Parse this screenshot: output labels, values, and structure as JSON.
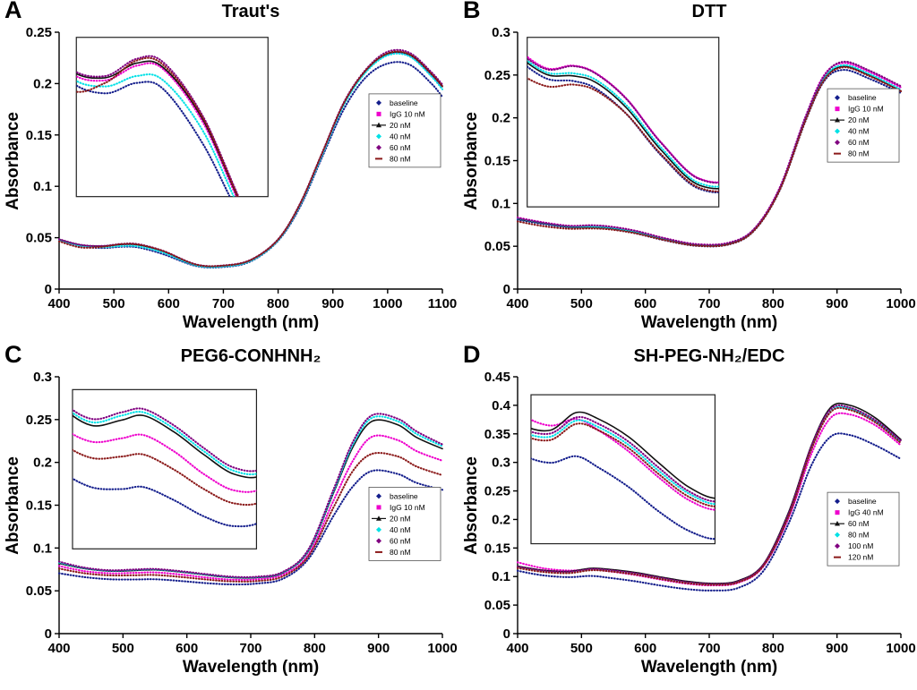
{
  "figure": {
    "background": "#ffffff"
  },
  "chart_data": [
    {
      "type": "line",
      "panel": "A",
      "title": "Traut's",
      "xlabel": "Wavelength (nm)",
      "ylabel": "Absorbance",
      "xlim": [
        400,
        1100
      ],
      "ylim": [
        0,
        0.25
      ],
      "xticks": [
        400,
        500,
        600,
        700,
        800,
        900,
        1000,
        1100
      ],
      "xtick_labels": [
        "400",
        "500",
        "600",
        "700",
        "800",
        "900",
        "1000",
        "1100"
      ],
      "yticks": [
        0,
        0.05,
        0.1,
        0.15,
        0.2,
        0.25
      ],
      "ytick_labels": [
        "0",
        "0.05",
        "0.1",
        "0.15",
        "0.2",
        "0.25"
      ],
      "legend_position": "right-inside",
      "legend_top_frac": 0.24,
      "inset": {
        "pos": [
          0.045,
          0.02,
          0.5,
          0.62
        ],
        "xlim": [
          448,
          662
        ],
        "ylim": [
          0.028,
          0.0465
        ]
      },
      "x": [
        400,
        440,
        480,
        515,
        545,
        590,
        650,
        700,
        750,
        800,
        840,
        880,
        920,
        960,
        1000,
        1040,
        1080,
        1100
      ],
      "series": [
        {
          "name": "baseline",
          "color": "#141e8c",
          "marker": "diamond",
          "line": "dotted",
          "y": [
            0.047,
            0.0415,
            0.04,
            0.0412,
            0.0405,
            0.034,
            0.0225,
            0.0215,
            0.027,
            0.047,
            0.08,
            0.128,
            0.175,
            0.206,
            0.2195,
            0.2185,
            0.2,
            0.187
          ]
        },
        {
          "name": "IgG 10 nM",
          "color": "#ee00cc",
          "marker": "square",
          "line": "dotted",
          "y": [
            0.048,
            0.0425,
            0.0415,
            0.0432,
            0.0428,
            0.0365,
            0.0235,
            0.0225,
            0.028,
            0.048,
            0.082,
            0.131,
            0.18,
            0.212,
            0.228,
            0.227,
            0.208,
            0.196
          ]
        },
        {
          "name": "20 nM",
          "color": "#111111",
          "marker": "triangle-line",
          "line": "solid",
          "y": [
            0.0482,
            0.0428,
            0.0418,
            0.0435,
            0.043,
            0.0368,
            0.0237,
            0.0227,
            0.0282,
            0.0482,
            0.0825,
            0.1315,
            0.1805,
            0.2125,
            0.229,
            0.228,
            0.209,
            0.197
          ]
        },
        {
          "name": "40 nM",
          "color": "#00e1e6",
          "marker": "diamond",
          "line": "dotted",
          "y": [
            0.0478,
            0.042,
            0.0408,
            0.042,
            0.0415,
            0.0355,
            0.023,
            0.022,
            0.0275,
            0.0475,
            0.0815,
            0.13,
            0.179,
            0.211,
            0.2275,
            0.2265,
            0.207,
            0.1945
          ]
        },
        {
          "name": "60 nM",
          "color": "#800080",
          "marker": "diamond",
          "line": "dotted",
          "y": [
            0.0485,
            0.043,
            0.042,
            0.044,
            0.0436,
            0.0372,
            0.024,
            0.023,
            0.0285,
            0.0485,
            0.083,
            0.132,
            0.1815,
            0.2135,
            0.231,
            0.23,
            0.211,
            0.199
          ]
        },
        {
          "name": "80 nM",
          "color": "#8b1a1a",
          "marker": "dash",
          "line": "dotted",
          "y": [
            0.0465,
            0.0405,
            0.0412,
            0.0438,
            0.0433,
            0.037,
            0.0238,
            0.0228,
            0.0283,
            0.0483,
            0.0827,
            0.1317,
            0.1808,
            0.2128,
            0.2295,
            0.2285,
            0.2095,
            0.1975
          ]
        }
      ]
    },
    {
      "type": "line",
      "panel": "B",
      "title": "DTT",
      "xlabel": "Wavelength (nm)",
      "ylabel": "Absorbance",
      "xlim": [
        400,
        1000
      ],
      "ylim": [
        0,
        0.3
      ],
      "xticks": [
        400,
        500,
        600,
        700,
        800,
        900,
        1000
      ],
      "xtick_labels": [
        "400",
        "500",
        "600",
        "700",
        "800",
        "900",
        "1000"
      ],
      "yticks": [
        0,
        0.05,
        0.1,
        0.15,
        0.2,
        0.25,
        0.3
      ],
      "ytick_labels": [
        "0",
        "0.05",
        "0.1",
        "0.15",
        "0.2",
        "0.25",
        "0.3"
      ],
      "legend_position": "right-inside",
      "legend_top_frac": 0.22,
      "inset": {
        "pos": [
          0.025,
          0.02,
          0.5,
          0.66
        ],
        "xlim": [
          455,
          705
        ],
        "ylim": [
          0.047,
          0.08
        ]
      },
      "x": [
        400,
        440,
        480,
        515,
        545,
        585,
        630,
        680,
        730,
        770,
        810,
        850,
        880,
        910,
        950,
        1000
      ],
      "series": [
        {
          "name": "baseline",
          "color": "#141e8c",
          "marker": "diamond",
          "line": "dotted",
          "y": [
            0.081,
            0.076,
            0.072,
            0.0715,
            0.07,
            0.065,
            0.057,
            0.0505,
            0.052,
            0.068,
            0.115,
            0.195,
            0.243,
            0.256,
            0.246,
            0.229
          ]
        },
        {
          "name": "IgG 10 nM",
          "color": "#ee00cc",
          "marker": "square",
          "line": "dotted",
          "y": [
            0.0835,
            0.078,
            0.074,
            0.0745,
            0.073,
            0.068,
            0.0595,
            0.0525,
            0.054,
            0.07,
            0.118,
            0.2,
            0.25,
            0.264,
            0.254,
            0.2355
          ]
        },
        {
          "name": "20 nM",
          "color": "#111111",
          "marker": "triangle-line",
          "line": "solid",
          "y": [
            0.082,
            0.0768,
            0.0728,
            0.0725,
            0.0712,
            0.0662,
            0.058,
            0.0512,
            0.0528,
            0.0688,
            0.116,
            0.197,
            0.246,
            0.26,
            0.25,
            0.2315
          ]
        },
        {
          "name": "40 nM",
          "color": "#00e1e6",
          "marker": "diamond",
          "line": "dotted",
          "y": [
            0.0825,
            0.0772,
            0.0732,
            0.073,
            0.0717,
            0.0667,
            0.0585,
            0.0516,
            0.0532,
            0.0692,
            0.1165,
            0.198,
            0.247,
            0.2615,
            0.2515,
            0.233
          ]
        },
        {
          "name": "60 nM",
          "color": "#800080",
          "marker": "diamond",
          "line": "dotted",
          "y": [
            0.083,
            0.0776,
            0.0738,
            0.0744,
            0.0729,
            0.0679,
            0.0594,
            0.0524,
            0.0539,
            0.0699,
            0.1175,
            0.1995,
            0.249,
            0.2655,
            0.2555,
            0.237
          ]
        },
        {
          "name": "80 nM",
          "color": "#8b1a1a",
          "marker": "dash",
          "line": "dotted",
          "y": [
            0.079,
            0.0735,
            0.0705,
            0.0708,
            0.0696,
            0.065,
            0.0572,
            0.0507,
            0.0522,
            0.0682,
            0.1152,
            0.1955,
            0.244,
            0.259,
            0.249,
            0.231
          ]
        }
      ]
    },
    {
      "type": "line",
      "panel": "C",
      "title": "PEG6-CONHNH₂",
      "xlabel": "Wavelength (nm)",
      "ylabel": "Absorbance",
      "xlim": [
        400,
        1000
      ],
      "ylim": [
        0,
        0.3
      ],
      "xticks": [
        400,
        500,
        600,
        700,
        800,
        900,
        1000
      ],
      "xtick_labels": [
        "400",
        "500",
        "600",
        "700",
        "800",
        "900",
        "1000"
      ],
      "yticks": [
        0,
        0.05,
        0.1,
        0.15,
        0.2,
        0.25,
        0.3
      ],
      "ytick_labels": [
        "0",
        "0.05",
        "0.1",
        "0.15",
        "0.2",
        "0.25",
        "0.3"
      ],
      "legend_position": "right-inside",
      "legend_top_frac": 0.43,
      "inset": {
        "pos": [
          0.035,
          0.05,
          0.48,
          0.62
        ],
        "xlim": [
          455,
          700
        ],
        "ylim": [
          0.054,
          0.0785
        ]
      },
      "x": [
        400,
        440,
        480,
        520,
        550,
        590,
        630,
        670,
        710,
        750,
        790,
        830,
        860,
        890,
        930,
        960,
        1000
      ],
      "series": [
        {
          "name": "baseline",
          "color": "#141e8c",
          "marker": "diamond",
          "line": "dotted",
          "y": [
            0.0705,
            0.066,
            0.0635,
            0.0632,
            0.0635,
            0.0615,
            0.059,
            0.0575,
            0.0585,
            0.064,
            0.087,
            0.138,
            0.172,
            0.19,
            0.1865,
            0.176,
            0.168
          ]
        },
        {
          "name": "IgG 10 nM",
          "color": "#ee00cc",
          "marker": "square",
          "line": "dotted",
          "y": [
            0.079,
            0.073,
            0.0705,
            0.071,
            0.0715,
            0.069,
            0.0655,
            0.063,
            0.0635,
            0.069,
            0.092,
            0.156,
            0.202,
            0.23,
            0.226,
            0.213,
            0.202
          ]
        },
        {
          "name": "20 nM",
          "color": "#111111",
          "marker": "triangle-line",
          "line": "solid",
          "y": [
            0.082,
            0.076,
            0.073,
            0.0738,
            0.0745,
            0.072,
            0.0685,
            0.0655,
            0.0655,
            0.071,
            0.096,
            0.165,
            0.218,
            0.248,
            0.244,
            0.229,
            0.216
          ]
        },
        {
          "name": "40 nM",
          "color": "#00e1e6",
          "marker": "diamond",
          "line": "dotted",
          "y": [
            0.083,
            0.0765,
            0.0735,
            0.0745,
            0.075,
            0.0725,
            0.069,
            0.066,
            0.066,
            0.0715,
            0.097,
            0.167,
            0.221,
            0.252,
            0.248,
            0.233,
            0.219
          ]
        },
        {
          "name": "60 nM",
          "color": "#800080",
          "marker": "diamond",
          "line": "dotted",
          "y": [
            0.084,
            0.077,
            0.074,
            0.075,
            0.0755,
            0.073,
            0.0695,
            0.0665,
            0.0665,
            0.072,
            0.098,
            0.169,
            0.224,
            0.255,
            0.251,
            0.236,
            0.221
          ]
        },
        {
          "name": "80 nM",
          "color": "#8b1a1a",
          "marker": "dash",
          "line": "dotted",
          "y": [
            0.076,
            0.0705,
            0.068,
            0.0682,
            0.0685,
            0.0662,
            0.0632,
            0.061,
            0.0615,
            0.0668,
            0.09,
            0.148,
            0.19,
            0.21,
            0.207,
            0.195,
            0.185
          ]
        }
      ]
    },
    {
      "type": "line",
      "panel": "D",
      "title": "SH-PEG-NH₂/EDC",
      "xlabel": "Wavelength (nm)",
      "ylabel": "Absorbance",
      "xlim": [
        400,
        1000
      ],
      "ylim": [
        0,
        0.45
      ],
      "xticks": [
        400,
        500,
        600,
        700,
        800,
        900,
        1000
      ],
      "xtick_labels": [
        "400",
        "500",
        "600",
        "700",
        "800",
        "900",
        "1000"
      ],
      "yticks": [
        0,
        0.05,
        0.1,
        0.15,
        0.2,
        0.25,
        0.3,
        0.35,
        0.4,
        0.45
      ],
      "ytick_labels": [
        "0",
        "0.05",
        "0.1",
        "0.15",
        "0.2",
        "0.25",
        "0.3",
        "0.35",
        "0.4",
        "0.45"
      ],
      "legend_position": "right-inside",
      "legend_top_frac": 0.45,
      "inset": {
        "pos": [
          0.035,
          0.07,
          0.48,
          0.58
        ],
        "xlim": [
          455,
          700
        ],
        "ylim": [
          0.074,
          0.12
        ]
      },
      "x": [
        400,
        440,
        480,
        515,
        545,
        585,
        625,
        665,
        705,
        745,
        785,
        825,
        860,
        890,
        920,
        960,
        1000
      ],
      "series": [
        {
          "name": "baseline",
          "color": "#141e8c",
          "marker": "diamond",
          "line": "dotted",
          "y": [
            0.11,
            0.102,
            0.099,
            0.101,
            0.0975,
            0.0915,
            0.084,
            0.078,
            0.0755,
            0.08,
            0.11,
            0.195,
            0.295,
            0.345,
            0.348,
            0.33,
            0.306
          ]
        },
        {
          "name": "IgG 40 nM",
          "color": "#ee00cc",
          "marker": "square",
          "line": "dotted",
          "y": [
            0.125,
            0.1145,
            0.1105,
            0.1125,
            0.109,
            0.1025,
            0.0945,
            0.0875,
            0.0845,
            0.089,
            0.118,
            0.205,
            0.315,
            0.378,
            0.384,
            0.365,
            0.33
          ]
        },
        {
          "name": "60 nM",
          "color": "#111111",
          "marker": "triangle-line",
          "line": "solid",
          "y": [
            0.118,
            0.111,
            0.109,
            0.1145,
            0.1125,
            0.107,
            0.099,
            0.0915,
            0.088,
            0.0925,
            0.122,
            0.215,
            0.33,
            0.396,
            0.4,
            0.378,
            0.34
          ]
        },
        {
          "name": "80 nM",
          "color": "#00e1e6",
          "marker": "diamond",
          "line": "dotted",
          "y": [
            0.116,
            0.109,
            0.107,
            0.112,
            0.11,
            0.1045,
            0.0965,
            0.0895,
            0.0862,
            0.0905,
            0.12,
            0.21,
            0.325,
            0.39,
            0.394,
            0.372,
            0.336
          ]
        },
        {
          "name": "100 nM",
          "color": "#800080",
          "marker": "diamond",
          "line": "dotted",
          "y": [
            0.117,
            0.11,
            0.108,
            0.113,
            0.111,
            0.1055,
            0.0975,
            0.0902,
            0.087,
            0.0912,
            0.121,
            0.212,
            0.328,
            0.393,
            0.396,
            0.374,
            0.338
          ]
        },
        {
          "name": "120 nM",
          "color": "#8b1a1a",
          "marker": "dash",
          "line": "dotted",
          "y": [
            0.115,
            0.108,
            0.106,
            0.111,
            0.109,
            0.1035,
            0.0955,
            0.0885,
            0.0855,
            0.0898,
            0.119,
            0.208,
            0.323,
            0.388,
            0.392,
            0.37,
            0.334
          ]
        }
      ]
    }
  ]
}
